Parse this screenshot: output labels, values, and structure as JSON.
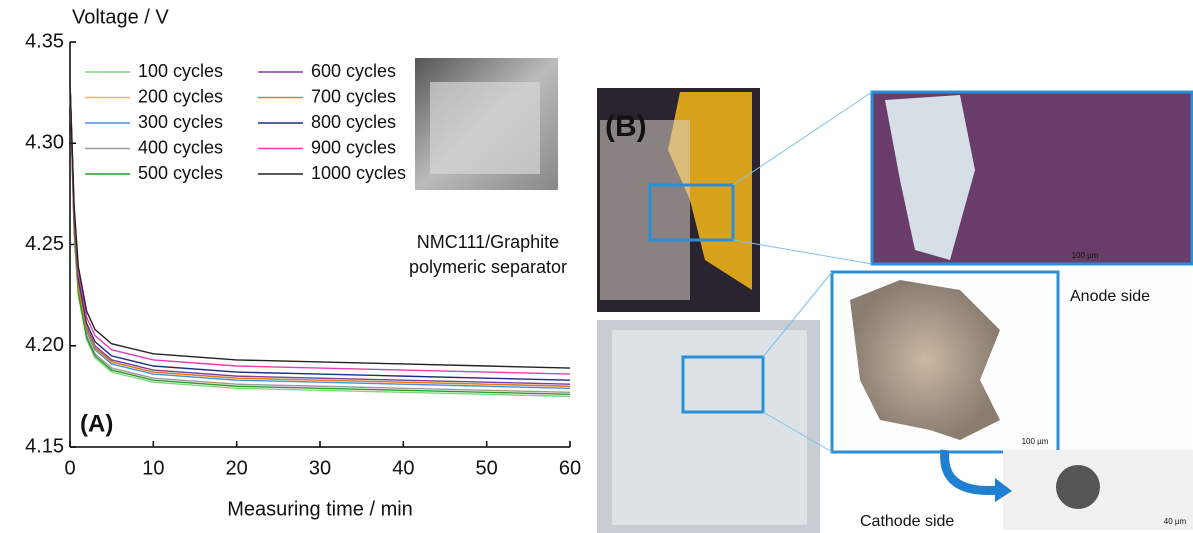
{
  "chart_data": {
    "type": "line",
    "y_label": "Voltage / V",
    "x_label": "Measuring time / min",
    "annotations": [
      "NMC111/Graphite",
      "polymeric separator",
      "(A)"
    ],
    "x": [
      0,
      0.5,
      1,
      2,
      3,
      5,
      10,
      20,
      30,
      40,
      50,
      60
    ],
    "xlim": [
      0,
      60
    ],
    "xticks": [
      0,
      10,
      20,
      30,
      40,
      50,
      60
    ],
    "ylim": [
      4.15,
      4.35
    ],
    "yticks": [
      4.15,
      {
        "value": 4.2,
        "label": "4.20"
      },
      4.25,
      {
        "value": 4.3,
        "label": "4.30"
      },
      4.35
    ],
    "series": [
      {
        "name": "100 cycles",
        "color": "#7fd67f",
        "values": [
          4.33,
          4.255,
          4.225,
          4.203,
          4.194,
          4.187,
          4.182,
          4.179,
          4.178,
          4.177,
          4.176,
          4.175
        ]
      },
      {
        "name": "200 cycles",
        "color": "#f4b37a",
        "values": [
          4.33,
          4.26,
          4.23,
          4.208,
          4.199,
          4.192,
          4.187,
          4.184,
          4.183,
          4.182,
          4.181,
          4.18
        ]
      },
      {
        "name": "300 cycles",
        "color": "#4a8fd6",
        "values": [
          4.33,
          4.259,
          4.229,
          4.207,
          4.198,
          4.191,
          4.186,
          4.183,
          4.182,
          4.181,
          4.18,
          4.179
        ]
      },
      {
        "name": "400 cycles",
        "color": "#9a9a9a",
        "values": [
          4.33,
          4.257,
          4.227,
          4.205,
          4.196,
          4.189,
          4.184,
          4.181,
          4.18,
          4.179,
          4.178,
          4.177
        ]
      },
      {
        "name": "500 cycles",
        "color": "#2e9a2e",
        "values": [
          4.33,
          4.256,
          4.226,
          4.204,
          4.195,
          4.188,
          4.183,
          4.18,
          4.179,
          4.178,
          4.177,
          4.176
        ]
      },
      {
        "name": "600 cycles",
        "color": "#7a3fa0",
        "values": [
          4.33,
          4.261,
          4.231,
          4.209,
          4.2,
          4.193,
          4.188,
          4.185,
          4.184,
          4.183,
          4.182,
          4.181
        ]
      },
      {
        "name": "700 cycles",
        "color": "#e07b12",
        "values": [
          4.33,
          4.26,
          4.23,
          4.208,
          4.199,
          4.192,
          4.187,
          4.184,
          4.183,
          4.182,
          4.181,
          4.18
        ]
      },
      {
        "name": "800 cycles",
        "color": "#1f2f7a",
        "values": [
          4.33,
          4.263,
          4.233,
          4.211,
          4.202,
          4.195,
          4.19,
          4.187,
          4.186,
          4.185,
          4.184,
          4.183
        ]
      },
      {
        "name": "900 cycles",
        "color": "#e040b0",
        "values": [
          4.33,
          4.266,
          4.236,
          4.214,
          4.205,
          4.198,
          4.193,
          4.19,
          4.189,
          4.188,
          4.187,
          4.186
        ]
      },
      {
        "name": "1000 cycles",
        "color": "#222222",
        "values": [
          4.33,
          4.269,
          4.239,
          4.217,
          4.208,
          4.201,
          4.196,
          4.193,
          4.192,
          4.191,
          4.19,
          4.189
        ]
      }
    ]
  },
  "panel_b": {
    "label": "(B)",
    "anode": "Anode side",
    "cathode": "Cathode side",
    "scale_bars": [
      "100 µm",
      "100 µm",
      "40 µm"
    ]
  }
}
